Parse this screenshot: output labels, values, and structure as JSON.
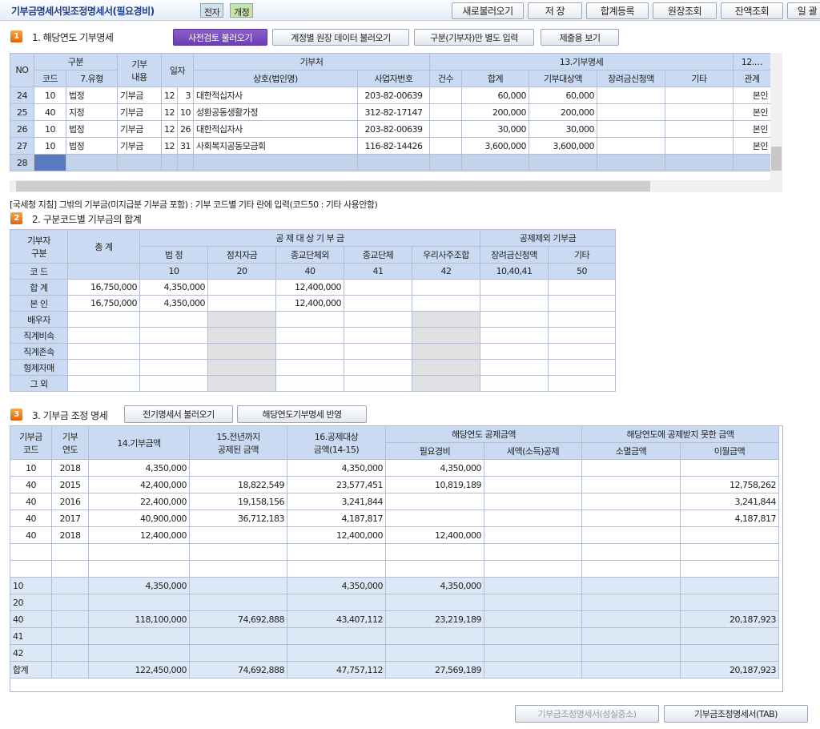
{
  "header": {
    "title": "기부금명세서및조정명세서(필요경비)",
    "badge_e": "전자",
    "badge_edit": "개정",
    "buttons": [
      "새로불러오기",
      "저   장",
      "합계등록",
      "원장조회",
      "잔액조회",
      "일 괄"
    ]
  },
  "section1": {
    "num": "1",
    "title": "1. 해당연도 기부명세",
    "buttons": [
      "사전검토 불러오기",
      "계정별 원장 데이터 불러오기",
      "구분(기부자)만 별도 입력",
      "제출용 보기"
    ],
    "header_top": [
      "NO",
      "구분",
      "기부\n내용",
      "일자",
      "기부처",
      "13.기부명세",
      "12.…"
    ],
    "header_bottom": [
      "코드",
      "7.유형",
      "상호(법인명)",
      "사업자번호",
      "건수",
      "합계",
      "기부대상액",
      "장려금신청액",
      "기타",
      "관계"
    ],
    "rows": [
      [
        "24",
        "10",
        "법정",
        "기부금",
        "12",
        "3",
        "대한적십자사",
        "203-82-00639",
        "",
        "60,000",
        "60,000",
        "",
        "",
        "본인"
      ],
      [
        "25",
        "40",
        "지정",
        "기부금",
        "12",
        "10",
        "성환공동생활가정",
        "312-82-17147",
        "",
        "200,000",
        "200,000",
        "",
        "",
        "본인"
      ],
      [
        "26",
        "10",
        "법정",
        "기부금",
        "12",
        "26",
        "대한적십자사",
        "203-82-00639",
        "",
        "30,000",
        "30,000",
        "",
        "",
        "본인"
      ],
      [
        "27",
        "10",
        "법정",
        "기부금",
        "12",
        "31",
        "사회복지공동모금회",
        "116-82-14426",
        "",
        "3,600,000",
        "3,600,000",
        "",
        "",
        "본인"
      ],
      [
        "28",
        "",
        "",
        "",
        "",
        "",
        "",
        "",
        "",
        "",
        "",
        "",
        "",
        ""
      ]
    ],
    "notice": "[국세청 지침] 그밖의 기부금(미지급분 기부금 포함) : 기부 코드별 기타 란에 입력(코드50 : 기타 사용안함)"
  },
  "section2": {
    "num": "2",
    "title": "2. 구분코드별 기부금의 합계",
    "h1": [
      "기부자\n구분",
      "총    계",
      "공 제 대 상    기 부 금",
      "공제제외 기부금"
    ],
    "h2": [
      "법  정",
      "정치자금",
      "종교단체외",
      "종교단체",
      "우리사주조합",
      "장려금신청액",
      "기타"
    ],
    "codes": [
      "코  드",
      "",
      "10",
      "20",
      "40",
      "41",
      "42",
      "10,40,41",
      "50"
    ],
    "rows": [
      [
        "합  계",
        "16,750,000",
        "4,350,000",
        "",
        "12,400,000",
        "",
        "",
        "",
        ""
      ],
      [
        "본  인",
        "16,750,000",
        "4,350,000",
        "",
        "12,400,000",
        "",
        "",
        "",
        ""
      ],
      [
        "배우자",
        "",
        "",
        "",
        "",
        "",
        "",
        "",
        ""
      ],
      [
        "직계비속",
        "",
        "",
        "",
        "",
        "",
        "",
        "",
        ""
      ],
      [
        "직계존속",
        "",
        "",
        "",
        "",
        "",
        "",
        "",
        ""
      ],
      [
        "형제자매",
        "",
        "",
        "",
        "",
        "",
        "",
        "",
        ""
      ],
      [
        "그  외",
        "",
        "",
        "",
        "",
        "",
        "",
        "",
        ""
      ]
    ]
  },
  "section3": {
    "num": "3",
    "title": "3. 기부금 조정 명세",
    "buttons": [
      "전기명세서 불러오기",
      "해당연도기부명세 반영"
    ],
    "h1": [
      "기부금\n코드",
      "기부\n연도",
      "14.기부금액",
      "15.전년까지\n공제된 금액",
      "16.공제대상\n금액(14-15)",
      "해당연도 공제금액",
      "해당연도에 공제받지 못한 금액"
    ],
    "h2": [
      "필요경비",
      "세액(소득)공제",
      "소멸금액",
      "이월금액"
    ],
    "rows": [
      [
        "10",
        "2018",
        "4,350,000",
        "",
        "4,350,000",
        "4,350,000",
        "",
        "",
        ""
      ],
      [
        "40",
        "2015",
        "42,400,000",
        "18,822,549",
        "23,577,451",
        "10,819,189",
        "",
        "",
        "12,758,262"
      ],
      [
        "40",
        "2016",
        "22,400,000",
        "19,158,156",
        "3,241,844",
        "",
        "",
        "",
        "3,241,844"
      ],
      [
        "40",
        "2017",
        "40,900,000",
        "36,712,183",
        "4,187,817",
        "",
        "",
        "",
        "4,187,817"
      ],
      [
        "40",
        "2018",
        "12,400,000",
        "",
        "12,400,000",
        "12,400,000",
        "",
        "",
        ""
      ],
      [
        "",
        "",
        "",
        "",
        "",
        "",
        "",
        "",
        ""
      ],
      [
        "",
        "",
        "",
        "",
        "",
        "",
        "",
        "",
        ""
      ]
    ],
    "summary": [
      [
        "10",
        "",
        "4,350,000",
        "",
        "4,350,000",
        "4,350,000",
        "",
        "",
        ""
      ],
      [
        "20",
        "",
        "",
        "",
        "",
        "",
        "",
        "",
        ""
      ],
      [
        "40",
        "",
        "118,100,000",
        "74,692,888",
        "43,407,112",
        "23,219,189",
        "",
        "",
        "20,187,923"
      ],
      [
        "41",
        "",
        "",
        "",
        "",
        "",
        "",
        "",
        ""
      ],
      [
        "42",
        "",
        "",
        "",
        "",
        "",
        "",
        "",
        ""
      ],
      [
        "합계",
        "",
        "122,450,000",
        "74,692,888",
        "47,757,112",
        "27,569,189",
        "",
        "",
        "20,187,923"
      ]
    ]
  },
  "footer": {
    "buttons": [
      "기부금조정명세서(성실중소)",
      "기부금조정명세서(TAB)"
    ]
  }
}
